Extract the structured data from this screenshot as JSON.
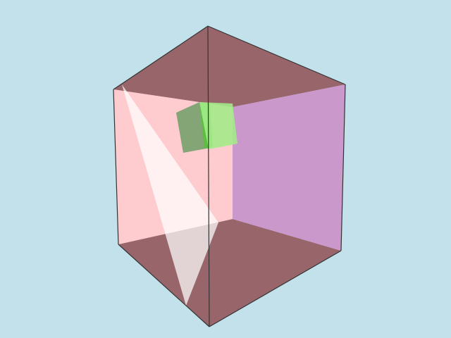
{
  "scene": {
    "description_visible_text": "",
    "colors": {
      "background": "#c2e1eb",
      "box_top_and_bottom": "#98656a",
      "box_left_wall": "#fecbce",
      "box_right_wall": "#cb98cb",
      "light_beam": "#ffffff",
      "cube_dark_face": "#7fa878",
      "cube_light_face": "#a7ef8c",
      "cube_inner": "#64c84a",
      "edge_lines": "#333333"
    }
  }
}
